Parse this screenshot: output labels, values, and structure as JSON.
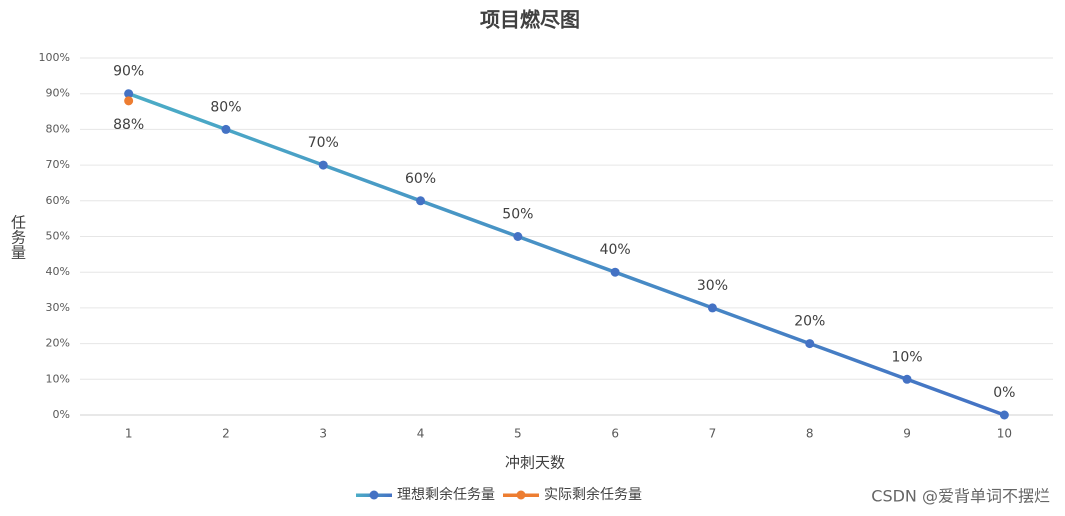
{
  "chart_data": {
    "type": "line",
    "title": "项目燃尽图",
    "x_label": "冲刺天数",
    "y_label": "任务量",
    "categories": [
      "1",
      "2",
      "3",
      "4",
      "5",
      "6",
      "7",
      "8",
      "9",
      "10"
    ],
    "series": [
      {
        "name": "理想剩余任务量",
        "color": "#4472c4",
        "line_gradient": [
          "#4bacc6",
          "#4472c4"
        ],
        "values": [
          90,
          80,
          70,
          60,
          50,
          40,
          30,
          20,
          10,
          0
        ],
        "value_labels": [
          "90%",
          "80%",
          "70%",
          "60%",
          "50%",
          "40%",
          "30%",
          "20%",
          "10%",
          "0%"
        ]
      },
      {
        "name": "实际剩余任务量",
        "color": "#ed7d31",
        "values": [
          88,
          null,
          null,
          null,
          null,
          null,
          null,
          null,
          null,
          null
        ],
        "value_labels": [
          "88%",
          null,
          null,
          null,
          null,
          null,
          null,
          null,
          null,
          null
        ]
      }
    ],
    "ylim": [
      0,
      100
    ],
    "yticks": [
      {
        "value": 0,
        "label": "0%"
      },
      {
        "value": 10,
        "label": "10%"
      },
      {
        "value": 20,
        "label": "20%"
      },
      {
        "value": 30,
        "label": "30%"
      },
      {
        "value": 40,
        "label": "40%"
      },
      {
        "value": 50,
        "label": "50%"
      },
      {
        "value": 60,
        "label": "60%"
      },
      {
        "value": 70,
        "label": "70%"
      },
      {
        "value": 80,
        "label": "80%"
      },
      {
        "value": 90,
        "label": "90%"
      },
      {
        "value": 100,
        "label": "100%"
      }
    ],
    "grid": true,
    "legend": "bottom",
    "watermark": "CSDN @爱背单词不摆烂"
  }
}
